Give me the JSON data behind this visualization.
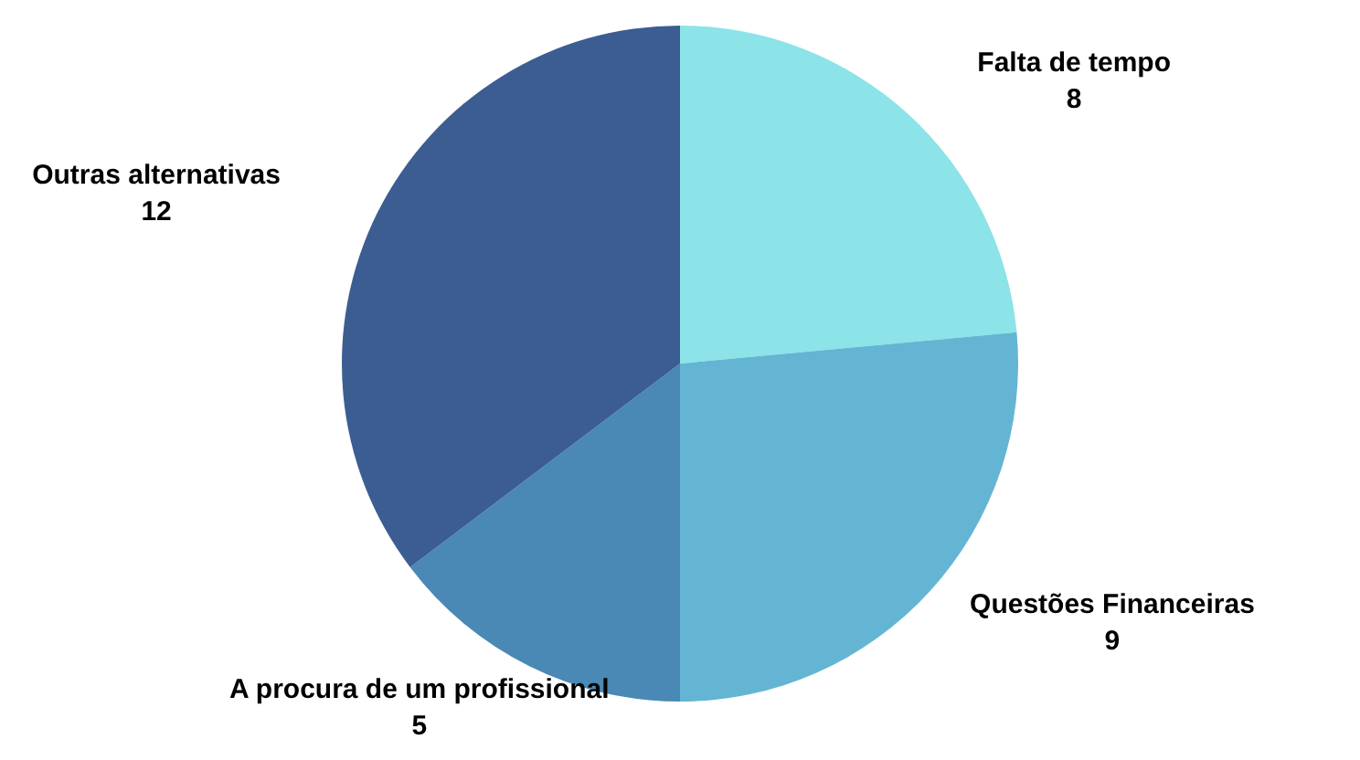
{
  "chart_data": {
    "type": "pie",
    "categories": [
      "Falta de tempo",
      "Questões Financeiras",
      "A procura de um profissional",
      "Outras alternativas"
    ],
    "values": [
      8,
      9,
      5,
      12
    ],
    "colors": [
      "#8ce3e8",
      "#64b5d3",
      "#4a88b5",
      "#3b5d92"
    ],
    "data_labels": true
  }
}
